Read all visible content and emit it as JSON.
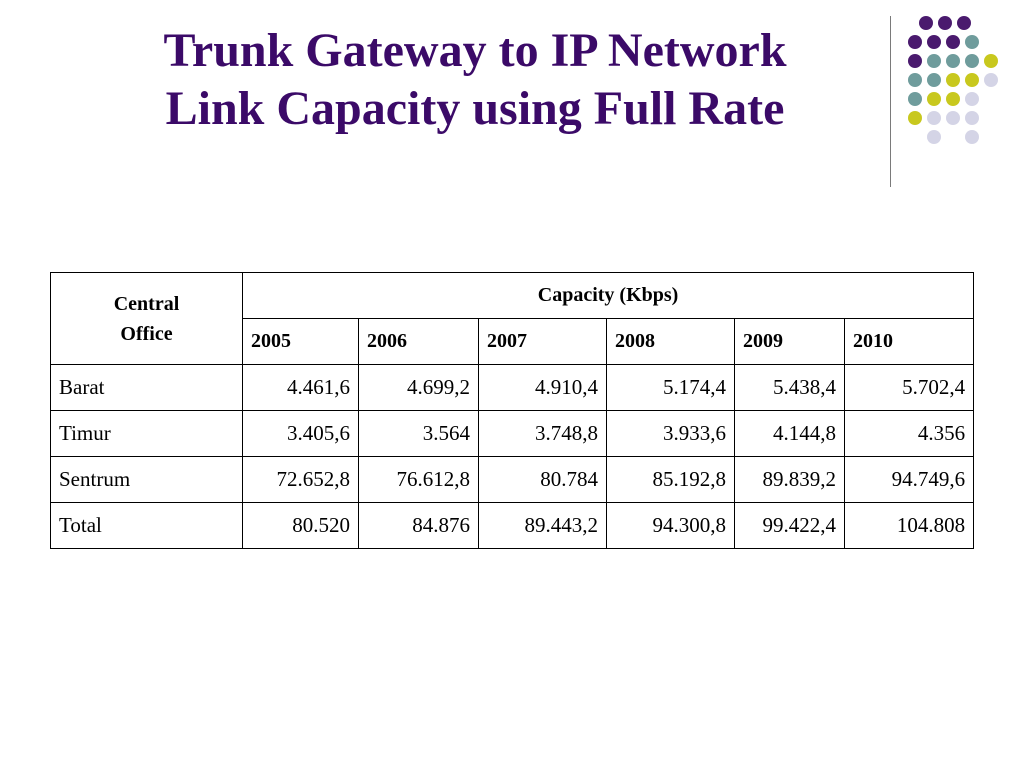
{
  "slide": {
    "title_line1": "Trunk Gateway to IP Network",
    "title_line2": "Link Capacity using Full Rate"
  },
  "colors": {
    "title": "#3b0a68",
    "dot_purple": "#4a1a6e",
    "dot_teal": "#6f9c9c",
    "dot_lime": "#c8c81e",
    "dot_lavender": "#d4d4e6"
  },
  "table": {
    "corner_header_line1": "Central",
    "corner_header_line2": "Office",
    "group_header": "Capacity (Kbps)",
    "years": [
      "2005",
      "2006",
      "2007",
      "2008",
      "2009",
      "2010"
    ],
    "rows": [
      {
        "label": "Barat",
        "values": [
          "4.461,6",
          "4.699,2",
          "4.910,4",
          "5.174,4",
          "5.438,4",
          "5.702,4"
        ]
      },
      {
        "label": "Timur",
        "values": [
          "3.405,6",
          "3.564",
          "3.748,8",
          "3.933,6",
          "4.144,8",
          "4.356"
        ]
      },
      {
        "label": "Sentrum",
        "values": [
          "72.652,8",
          "76.612,8",
          "80.784",
          "85.192,8",
          "89.839,2",
          "94.749,6"
        ]
      },
      {
        "label": "Total",
        "values": [
          "80.520",
          "84.876",
          "89.443,2",
          "94.300,8",
          "99.422,4",
          "104.808"
        ]
      }
    ]
  }
}
